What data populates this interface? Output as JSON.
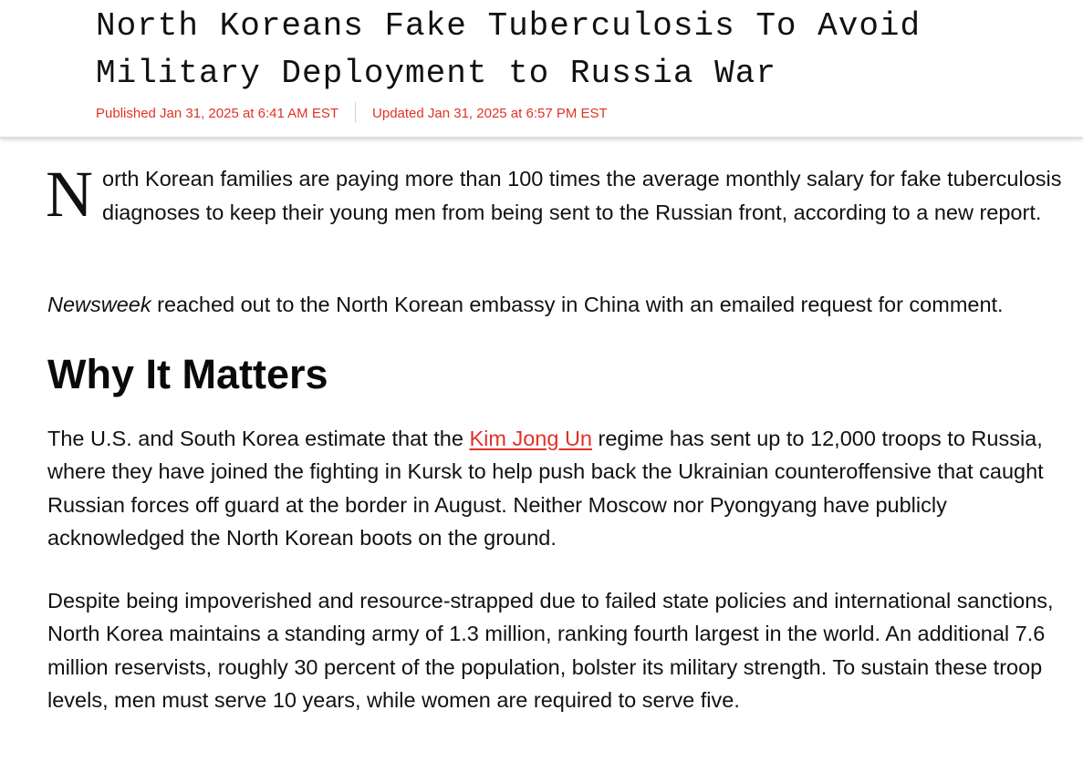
{
  "article": {
    "headline": "North Koreans Fake Tuberculosis To Avoid Military Deployment to Russia War",
    "published": "Published Jan 31, 2025 at 6:41 AM EST",
    "updated": "Updated Jan 31, 2025 at 6:57 PM EST",
    "intro": {
      "dropcap": "N",
      "text": "orth Korean families are paying more than 100 times the average monthly salary for fake tuberculosis diagnoses to keep their young men from being sent to the Russian front, according to a new report."
    },
    "comment": {
      "publication": "Newsweek",
      "text": " reached out to the North Korean embassy in China with an emailed request for comment."
    },
    "section_heading": "Why It Matters",
    "why_it_matters": {
      "before_link": "The U.S. and South Korea estimate that the ",
      "link_text": "Kim Jong Un",
      "after_link": " regime has sent up to 12,000 troops to Russia, where they have joined the fighting in Kursk to help push back the Ukrainian counteroffensive that caught Russian forces off guard at the border in August. Neither Moscow nor Pyongyang have publicly acknowledged the North Korean boots on the ground."
    },
    "army_paragraph": "Despite being impoverished and resource-strapped due to failed state policies and international sanctions, North Korea maintains a standing army of 1.3 million, ranking fourth largest in the world. An additional 7.6 million reservists, roughly 30 percent of the population, bolster its military strength. To sustain these troop levels, men must serve 10 years, while women are required to serve five."
  },
  "colors": {
    "accent": "#e03228",
    "text": "#111111",
    "background": "#ffffff"
  }
}
